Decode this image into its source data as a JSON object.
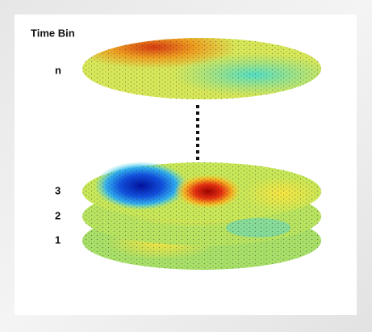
{
  "axis_title": "Time Bin",
  "bins": [
    {
      "label": "n"
    },
    {
      "label": "3"
    },
    {
      "label": "2"
    },
    {
      "label": "1"
    }
  ]
}
